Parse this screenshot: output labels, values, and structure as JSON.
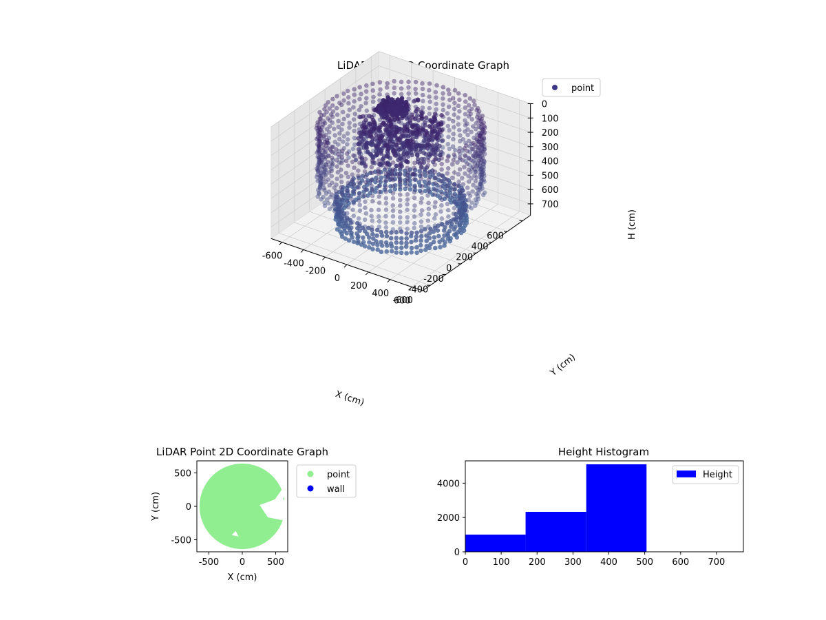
{
  "chart_data": [
    {
      "type": "scatter3d",
      "title": "LiDAR Point 3D Coordinate Graph",
      "xlabel": "X (cm)",
      "ylabel": "Y (cm)",
      "zlabel": "H (cm)",
      "xlim": [
        -700,
        700
      ],
      "ylim": [
        -700,
        700
      ],
      "zlim": [
        780,
        0
      ],
      "x_ticks": [
        -600,
        -400,
        -200,
        0,
        200,
        400,
        600
      ],
      "y_ticks": [
        -600,
        -400,
        -200,
        0,
        200,
        400,
        600
      ],
      "z_ticks": [
        0,
        100,
        200,
        300,
        400,
        500,
        600,
        700
      ],
      "grid": true,
      "legend": {
        "position": "top-right",
        "entries": [
          {
            "label": "point",
            "color": "#3f3a87"
          }
        ]
      },
      "colors": {
        "high": "#3b1d66",
        "low": "#4a6a9e"
      },
      "description": {
        "wall_ring": {
          "radius": 620,
          "height_range": [
            50,
            520
          ]
        },
        "floor_ring": {
          "radius": 480,
          "height_range": [
            600,
            740
          ]
        },
        "central_mass": {
          "center": [
            -50,
            50
          ],
          "height_range": [
            50,
            350
          ]
        }
      }
    },
    {
      "type": "scatter",
      "title": "LiDAR Point 2D Coordinate Graph",
      "xlabel": "X (cm)",
      "ylabel": "Y (cm)",
      "xlim": [
        -680,
        680
      ],
      "ylim": [
        -680,
        680
      ],
      "x_ticks": [
        -500,
        0,
        500
      ],
      "y_ticks": [
        -500,
        0,
        500
      ],
      "legend": {
        "position": "outside-right",
        "entries": [
          {
            "label": "point",
            "color": "#90ee90"
          },
          {
            "label": "wall",
            "color": "#0000ff"
          }
        ]
      },
      "series": [
        {
          "name": "point",
          "shape": "disc",
          "radius": 640,
          "color": "#90ee90"
        },
        {
          "name": "wall",
          "color": "#0000ff",
          "count": 0
        }
      ]
    },
    {
      "type": "histogram",
      "title": "Height Histogram",
      "xlim": [
        0,
        775
      ],
      "ylim": [
        0,
        5300
      ],
      "x_ticks": [
        0,
        100,
        200,
        300,
        400,
        500,
        600,
        700
      ],
      "y_ticks": [
        0,
        2000,
        4000
      ],
      "color": "#0000ff",
      "legend": {
        "position": "top-right",
        "entries": [
          {
            "label": "Height",
            "color": "#0000ff"
          }
        ]
      },
      "bins": [
        {
          "x0": 0,
          "x1": 168,
          "count": 1000
        },
        {
          "x0": 168,
          "x1": 337,
          "count": 2330
        },
        {
          "x0": 337,
          "x1": 505,
          "count": 5100
        }
      ]
    }
  ]
}
